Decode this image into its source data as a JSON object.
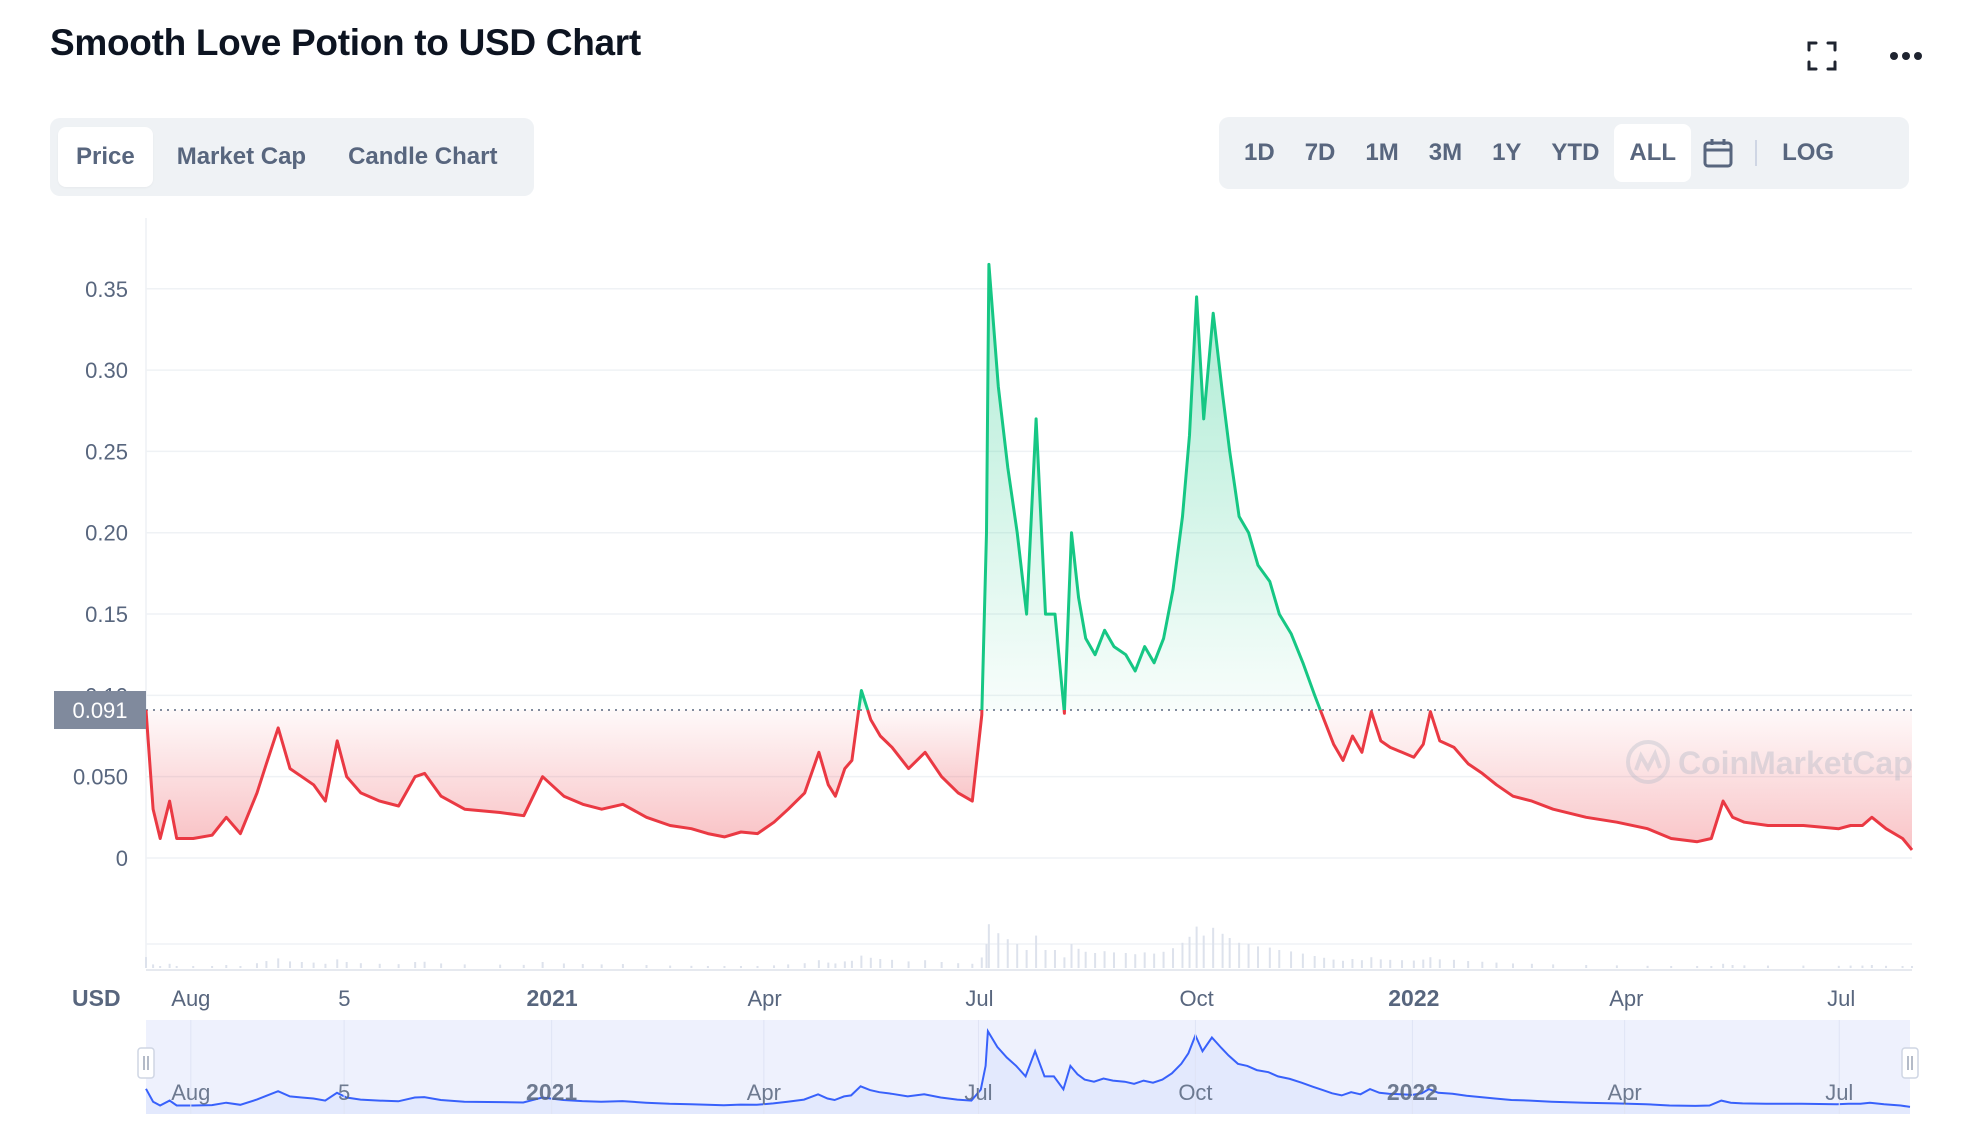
{
  "header": {
    "title": "Smooth Love Potion to USD Chart"
  },
  "icons": {
    "fullscreen": "fullscreen-icon",
    "more": "more-icon",
    "calendar": "calendar-icon"
  },
  "tabs": [
    {
      "label": "Price",
      "active": true
    },
    {
      "label": "Market Cap",
      "active": false
    },
    {
      "label": "Candle Chart",
      "active": false
    }
  ],
  "ranges": [
    {
      "label": "1D",
      "active": false
    },
    {
      "label": "7D",
      "active": false
    },
    {
      "label": "1M",
      "active": false
    },
    {
      "label": "3M",
      "active": false
    },
    {
      "label": "1Y",
      "active": false
    },
    {
      "label": "YTD",
      "active": false
    },
    {
      "label": "ALL",
      "active": true
    }
  ],
  "log_label": "LOG",
  "currency_label": "USD",
  "current_price_label": "0.091",
  "watermark": "CoinMarketCap",
  "colors": {
    "up": "#16c784",
    "down": "#ea3943",
    "navigator": "#3861fb",
    "navigator_fill": "#e3e9fd",
    "price_tag": "#808a9d"
  },
  "chart_data": {
    "type": "area",
    "title": "Smooth Love Potion to USD Chart",
    "ylabel": "USD",
    "ylim": [
      0,
      0.38
    ],
    "yticks": [
      0,
      0.05,
      0.1,
      0.15,
      0.2,
      0.25,
      0.3,
      0.35
    ],
    "ytick_labels": [
      "0",
      "0.050",
      "0.10",
      "0.15",
      "0.20",
      "0.25",
      "0.30",
      "0.35"
    ],
    "baseline": 0.091,
    "x_tick_labels": [
      {
        "label": "Aug",
        "bold": false,
        "date": "2020-08-01"
      },
      {
        "label": "5",
        "bold": false,
        "date": "2020-10-05"
      },
      {
        "label": "2021",
        "bold": true,
        "date": "2021-01-01"
      },
      {
        "label": "Apr",
        "bold": false,
        "date": "2021-04-01"
      },
      {
        "label": "Jul",
        "bold": false,
        "date": "2021-07-01"
      },
      {
        "label": "Oct",
        "bold": false,
        "date": "2021-10-01"
      },
      {
        "label": "2022",
        "bold": true,
        "date": "2022-01-01"
      },
      {
        "label": "Apr",
        "bold": false,
        "date": "2022-04-01"
      },
      {
        "label": "Jul",
        "bold": false,
        "date": "2022-07-01"
      }
    ],
    "xlim": [
      "2020-07-13",
      "2022-07-31"
    ],
    "grid": true,
    "series": [
      {
        "points": [
          [
            "2020-07-13",
            0.091
          ],
          [
            "2020-07-16",
            0.03
          ],
          [
            "2020-07-19",
            0.012
          ],
          [
            "2020-07-23",
            0.035
          ],
          [
            "2020-07-26",
            0.012
          ],
          [
            "2020-08-02",
            0.012
          ],
          [
            "2020-08-10",
            0.014
          ],
          [
            "2020-08-16",
            0.025
          ],
          [
            "2020-08-22",
            0.015
          ],
          [
            "2020-08-29",
            0.04
          ],
          [
            "2020-09-02",
            0.058
          ],
          [
            "2020-09-07",
            0.08
          ],
          [
            "2020-09-12",
            0.055
          ],
          [
            "2020-09-17",
            0.05
          ],
          [
            "2020-09-22",
            0.045
          ],
          [
            "2020-09-27",
            0.035
          ],
          [
            "2020-10-02",
            0.072
          ],
          [
            "2020-10-06",
            0.05
          ],
          [
            "2020-10-12",
            0.04
          ],
          [
            "2020-10-20",
            0.035
          ],
          [
            "2020-10-28",
            0.032
          ],
          [
            "2020-11-04",
            0.05
          ],
          [
            "2020-11-08",
            0.052
          ],
          [
            "2020-11-15",
            0.038
          ],
          [
            "2020-11-25",
            0.03
          ],
          [
            "2020-12-10",
            0.028
          ],
          [
            "2020-12-20",
            0.026
          ],
          [
            "2020-12-28",
            0.05
          ],
          [
            "2021-01-06",
            0.038
          ],
          [
            "2021-01-14",
            0.033
          ],
          [
            "2021-01-22",
            0.03
          ],
          [
            "2021-01-31",
            0.033
          ],
          [
            "2021-02-10",
            0.025
          ],
          [
            "2021-02-20",
            0.02
          ],
          [
            "2021-03-01",
            0.018
          ],
          [
            "2021-03-08",
            0.015
          ],
          [
            "2021-03-15",
            0.013
          ],
          [
            "2021-03-22",
            0.016
          ],
          [
            "2021-03-29",
            0.015
          ],
          [
            "2021-04-05",
            0.022
          ],
          [
            "2021-04-11",
            0.03
          ],
          [
            "2021-04-18",
            0.04
          ],
          [
            "2021-04-24",
            0.065
          ],
          [
            "2021-04-28",
            0.045
          ],
          [
            "2021-05-01",
            0.038
          ],
          [
            "2021-05-05",
            0.055
          ],
          [
            "2021-05-08",
            0.06
          ],
          [
            "2021-05-12",
            0.103
          ],
          [
            "2021-05-16",
            0.085
          ],
          [
            "2021-05-20",
            0.075
          ],
          [
            "2021-05-25",
            0.068
          ],
          [
            "2021-06-01",
            0.055
          ],
          [
            "2021-06-08",
            0.065
          ],
          [
            "2021-06-15",
            0.05
          ],
          [
            "2021-06-22",
            0.04
          ],
          [
            "2021-06-28",
            0.035
          ],
          [
            "2021-07-02",
            0.088
          ],
          [
            "2021-07-04",
            0.2
          ],
          [
            "2021-07-05",
            0.365
          ],
          [
            "2021-07-09",
            0.29
          ],
          [
            "2021-07-13",
            0.24
          ],
          [
            "2021-07-17",
            0.2
          ],
          [
            "2021-07-21",
            0.15
          ],
          [
            "2021-07-25",
            0.27
          ],
          [
            "2021-07-29",
            0.15
          ],
          [
            "2021-08-02",
            0.15
          ],
          [
            "2021-08-06",
            0.089
          ],
          [
            "2021-08-09",
            0.2
          ],
          [
            "2021-08-12",
            0.16
          ],
          [
            "2021-08-15",
            0.135
          ],
          [
            "2021-08-19",
            0.125
          ],
          [
            "2021-08-23",
            0.14
          ],
          [
            "2021-08-27",
            0.13
          ],
          [
            "2021-09-01",
            0.125
          ],
          [
            "2021-09-05",
            0.115
          ],
          [
            "2021-09-09",
            0.13
          ],
          [
            "2021-09-13",
            0.12
          ],
          [
            "2021-09-17",
            0.135
          ],
          [
            "2021-09-21",
            0.165
          ],
          [
            "2021-09-25",
            0.21
          ],
          [
            "2021-09-28",
            0.26
          ],
          [
            "2021-10-01",
            0.345
          ],
          [
            "2021-10-04",
            0.27
          ],
          [
            "2021-10-08",
            0.335
          ],
          [
            "2021-10-12",
            0.285
          ],
          [
            "2021-10-15",
            0.25
          ],
          [
            "2021-10-19",
            0.21
          ],
          [
            "2021-10-23",
            0.2
          ],
          [
            "2021-10-27",
            0.18
          ],
          [
            "2021-11-01",
            0.17
          ],
          [
            "2021-11-05",
            0.15
          ],
          [
            "2021-11-10",
            0.138
          ],
          [
            "2021-11-15",
            0.12
          ],
          [
            "2021-11-20",
            0.1
          ],
          [
            "2021-11-24",
            0.085
          ],
          [
            "2021-11-28",
            0.07
          ],
          [
            "2021-12-02",
            0.06
          ],
          [
            "2021-12-06",
            0.075
          ],
          [
            "2021-12-10",
            0.065
          ],
          [
            "2021-12-14",
            0.09
          ],
          [
            "2021-12-18",
            0.072
          ],
          [
            "2021-12-22",
            0.068
          ],
          [
            "2021-12-27",
            0.065
          ],
          [
            "2022-01-01",
            0.062
          ],
          [
            "2022-01-05",
            0.07
          ],
          [
            "2022-01-08",
            0.09
          ],
          [
            "2022-01-12",
            0.072
          ],
          [
            "2022-01-18",
            0.068
          ],
          [
            "2022-01-24",
            0.058
          ],
          [
            "2022-01-30",
            0.052
          ],
          [
            "2022-02-05",
            0.045
          ],
          [
            "2022-02-12",
            0.038
          ],
          [
            "2022-02-20",
            0.035
          ],
          [
            "2022-03-01",
            0.03
          ],
          [
            "2022-03-15",
            0.025
          ],
          [
            "2022-03-28",
            0.022
          ],
          [
            "2022-04-10",
            0.018
          ],
          [
            "2022-04-20",
            0.012
          ],
          [
            "2022-05-01",
            0.01
          ],
          [
            "2022-05-07",
            0.012
          ],
          [
            "2022-05-12",
            0.035
          ],
          [
            "2022-05-16",
            0.025
          ],
          [
            "2022-05-21",
            0.022
          ],
          [
            "2022-05-31",
            0.02
          ],
          [
            "2022-06-15",
            0.02
          ],
          [
            "2022-06-30",
            0.018
          ],
          [
            "2022-07-05",
            0.02
          ],
          [
            "2022-07-10",
            0.02
          ],
          [
            "2022-07-14",
            0.025
          ],
          [
            "2022-07-20",
            0.018
          ],
          [
            "2022-07-27",
            0.012
          ],
          [
            "2022-07-31",
            0.005
          ]
        ]
      }
    ]
  }
}
